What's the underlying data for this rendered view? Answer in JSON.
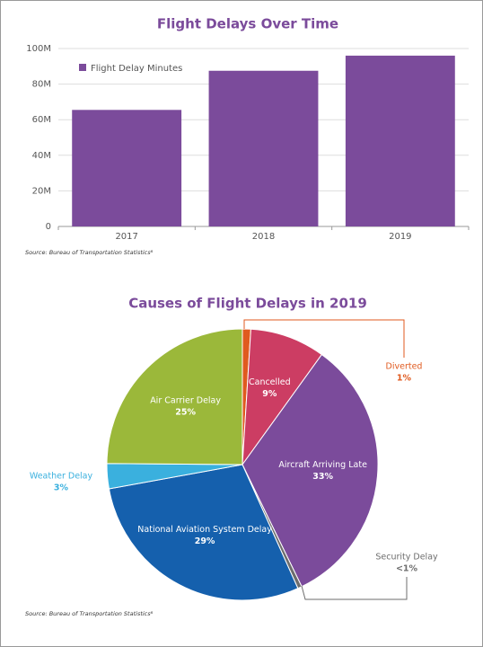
{
  "chart_data": [
    {
      "type": "bar",
      "title": "Flight Delays Over Time",
      "categories": [
        "2017",
        "2018",
        "2019"
      ],
      "series": [
        {
          "name": "Flight Delay Minutes",
          "color": "#7b4b9b",
          "values": [
            65500000,
            87500000,
            96000000
          ]
        }
      ],
      "ylim": [
        0,
        100000000
      ],
      "yticks": [
        0,
        {
          "value": 20000000,
          "label": "20M"
        },
        {
          "value": 40000000,
          "label": "40M"
        },
        {
          "value": 60000000,
          "label": "60M"
        },
        {
          "value": 80000000,
          "label": "80M"
        },
        {
          "value": 100000000,
          "label": "100M"
        }
      ],
      "grid": true,
      "legend": "top-left",
      "source": "Source: Bureau of Transportation Statistics⁸"
    },
    {
      "type": "pie",
      "title": "Causes of Flight Delays in 2019",
      "categories": [
        "Diverted",
        "Cancelled",
        "Aircraft Arriving Late",
        "Security Delay",
        "National Aviation System Delay",
        "Weather Delay",
        "Air Carrier Delay"
      ],
      "values": [
        1,
        9,
        33,
        0.5,
        29,
        3,
        25
      ],
      "value_labels": [
        "1%",
        "9%",
        "33%",
        "<1%",
        "29%",
        "3%",
        "25%"
      ],
      "colors": [
        "#e05a1f",
        "#cc3d63",
        "#7b4b9b",
        "#6d6d6d",
        "#1560ad",
        "#3ab0de",
        "#9bb83a"
      ],
      "source": "Source: Bureau of Transportation Statistics⁸"
    }
  ]
}
